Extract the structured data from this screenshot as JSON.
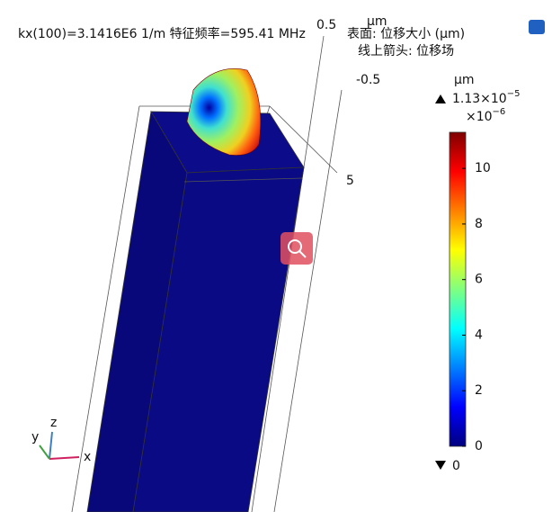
{
  "chart_data": {
    "type": "surface3d",
    "title": "kx(100)=3.1416E6 1/m 特征频率=595.41 MHz",
    "surface_label": "表面: 位移大小 (µm)",
    "arrow_label": "线上箭头: 位移场",
    "axis_labels": {
      "top": "0.5",
      "unit": "µm",
      "mid": "-0.5",
      "side": "5"
    },
    "triad": {
      "x": "x",
      "y": "y",
      "z": "z"
    },
    "colorbar": {
      "unit": "µm",
      "max_label": "1.13×10",
      "max_exponent": "−5",
      "scale_label": "×10",
      "scale_exponent": "−6",
      "min_label": "0",
      "ylim": [
        0,
        11.3
      ],
      "yticks": [
        0,
        2,
        4,
        6,
        8,
        10
      ],
      "colormap": [
        "#00007f",
        "#0000ff",
        "#0080ff",
        "#00ffff",
        "#80ff80",
        "#ffff00",
        "#ff8000",
        "#ff0000",
        "#7f0000"
      ]
    }
  }
}
